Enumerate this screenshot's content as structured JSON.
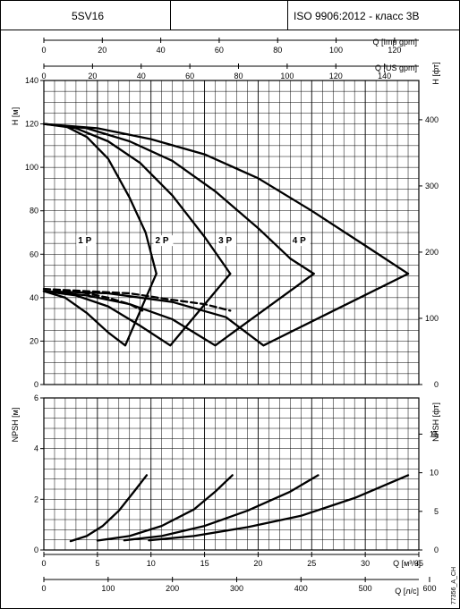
{
  "header": {
    "model": "5SV16",
    "middle": "",
    "standard": "ISO 9906:2012 - класс 3B"
  },
  "footer_code": "77356_A_CH",
  "chart_data": [
    {
      "type": "line",
      "name_id": "head",
      "ylabel": "H [м]",
      "ylabel_right": "H [фт]",
      "ylim": [
        0,
        140
      ],
      "yticks": [
        0,
        20,
        40,
        60,
        80,
        100,
        120,
        140
      ],
      "ylim_right": [
        0,
        459.3
      ],
      "yticks_right": [
        0,
        100,
        200,
        300,
        400
      ],
      "xlim": [
        0,
        35
      ],
      "top_axes": [
        {
          "label": "Q [Imp gpm]",
          "ticks": [
            0,
            20,
            40,
            60,
            80,
            100,
            120
          ],
          "per_m3h": 3.666
        },
        {
          "label": "Q [US gpm]",
          "ticks": [
            0,
            20,
            40,
            60,
            80,
            100,
            120,
            140
          ],
          "per_m3h": 4.403
        }
      ],
      "series": [
        {
          "name": "1 P",
          "style": "solid",
          "points": [
            [
              0,
              120
            ],
            [
              2,
              119
            ],
            [
              4,
              114
            ],
            [
              6,
              104
            ],
            [
              8,
              86
            ],
            [
              9.5,
              70
            ],
            [
              10.5,
              51
            ]
          ]
        },
        {
          "name": "2 P",
          "style": "solid",
          "points": [
            [
              0,
              120
            ],
            [
              3,
              118
            ],
            [
              6,
              112
            ],
            [
              9,
              102
            ],
            [
              12,
              87
            ],
            [
              15,
              68
            ],
            [
              17.4,
              51
            ]
          ]
        },
        {
          "name": "3 P",
          "style": "solid",
          "points": [
            [
              0,
              120
            ],
            [
              4,
              118
            ],
            [
              8,
              112
            ],
            [
              12,
              103
            ],
            [
              16,
              89
            ],
            [
              20,
              72
            ],
            [
              23,
              58
            ],
            [
              25.2,
              51
            ]
          ]
        },
        {
          "name": "4 P",
          "style": "solid",
          "points": [
            [
              0,
              120
            ],
            [
              5,
              118
            ],
            [
              10,
              113
            ],
            [
              15,
              106
            ],
            [
              20,
              95
            ],
            [
              25,
              80
            ],
            [
              30,
              64
            ],
            [
              34,
              51
            ]
          ]
        },
        {
          "name": "",
          "style": "solid",
          "points": [
            [
              0,
              43
            ],
            [
              2,
              40
            ],
            [
              4,
              33
            ],
            [
              6,
              24
            ],
            [
              7.6,
              18
            ],
            [
              10.5,
              51
            ]
          ]
        },
        {
          "name": "",
          "style": "solid",
          "points": [
            [
              0,
              43
            ],
            [
              3,
              41
            ],
            [
              6,
              36
            ],
            [
              9,
              27
            ],
            [
              11.8,
              18
            ],
            [
              17.4,
              51
            ]
          ]
        },
        {
          "name": "",
          "style": "solid",
          "points": [
            [
              0,
              43
            ],
            [
              4,
              41
            ],
            [
              8,
              37
            ],
            [
              12,
              30
            ],
            [
              16,
              18
            ],
            [
              25.2,
              51
            ]
          ]
        },
        {
          "name": "",
          "style": "solid",
          "points": [
            [
              0,
              43
            ],
            [
              6,
              42
            ],
            [
              12,
              38
            ],
            [
              17,
              31
            ],
            [
              20.5,
              18
            ],
            [
              34,
              51
            ]
          ]
        },
        {
          "name": "",
          "style": "dashed",
          "points": [
            [
              0,
              44
            ],
            [
              3,
              43
            ],
            [
              6,
              40
            ],
            [
              8,
              37
            ],
            [
              9.2,
              34
            ]
          ]
        },
        {
          "name": "",
          "style": "dashed",
          "points": [
            [
              0,
              44
            ],
            [
              4,
              43
            ],
            [
              8,
              42
            ],
            [
              12,
              39
            ],
            [
              15,
              37
            ],
            [
              17.4,
              34
            ]
          ]
        }
      ],
      "labels": [
        {
          "text": "1 P",
          "x": 3.2,
          "y": 65
        },
        {
          "text": "2 P",
          "x": 10.4,
          "y": 65
        },
        {
          "text": "3 P",
          "x": 16.3,
          "y": 65
        },
        {
          "text": "4 P",
          "x": 23.2,
          "y": 65
        }
      ],
      "grid": true
    },
    {
      "type": "line",
      "name_id": "npsh",
      "ylabel": "NPSH [м]",
      "ylabel_right": "NPSH [фт]",
      "ylim": [
        0,
        6
      ],
      "yticks": [
        0,
        2,
        4,
        6
      ],
      "ylim_right": [
        0,
        19.685
      ],
      "yticks_right": [
        0,
        5,
        10,
        15
      ],
      "xlim": [
        0,
        35
      ],
      "xlabel": "Q [м³/ч]",
      "xticks": [
        0,
        5,
        10,
        15,
        20,
        25,
        30,
        35
      ],
      "xlabel2": "Q [л/с]",
      "xticks2_lps": [
        0,
        100,
        200,
        300,
        400,
        500,
        600
      ],
      "series": [
        {
          "name": "1 P",
          "style": "solid",
          "points": [
            [
              2.5,
              0.35
            ],
            [
              4,
              0.55
            ],
            [
              5.5,
              0.95
            ],
            [
              7,
              1.55
            ],
            [
              8.5,
              2.35
            ],
            [
              9.6,
              2.95
            ]
          ]
        },
        {
          "name": "2 P",
          "style": "solid",
          "points": [
            [
              5,
              0.37
            ],
            [
              8,
              0.55
            ],
            [
              11,
              0.95
            ],
            [
              14,
              1.6
            ],
            [
              16,
              2.3
            ],
            [
              17.6,
              2.95
            ]
          ]
        },
        {
          "name": "3 P",
          "style": "solid",
          "points": [
            [
              7.5,
              0.38
            ],
            [
              11,
              0.55
            ],
            [
              15,
              0.95
            ],
            [
              19,
              1.55
            ],
            [
              23,
              2.3
            ],
            [
              25.6,
              2.95
            ]
          ]
        },
        {
          "name": "4 P",
          "style": "solid",
          "points": [
            [
              9.8,
              0.38
            ],
            [
              14,
              0.55
            ],
            [
              19,
              0.9
            ],
            [
              24,
              1.35
            ],
            [
              29,
              2.05
            ],
            [
              34,
              2.95
            ]
          ]
        }
      ],
      "grid": true
    }
  ]
}
